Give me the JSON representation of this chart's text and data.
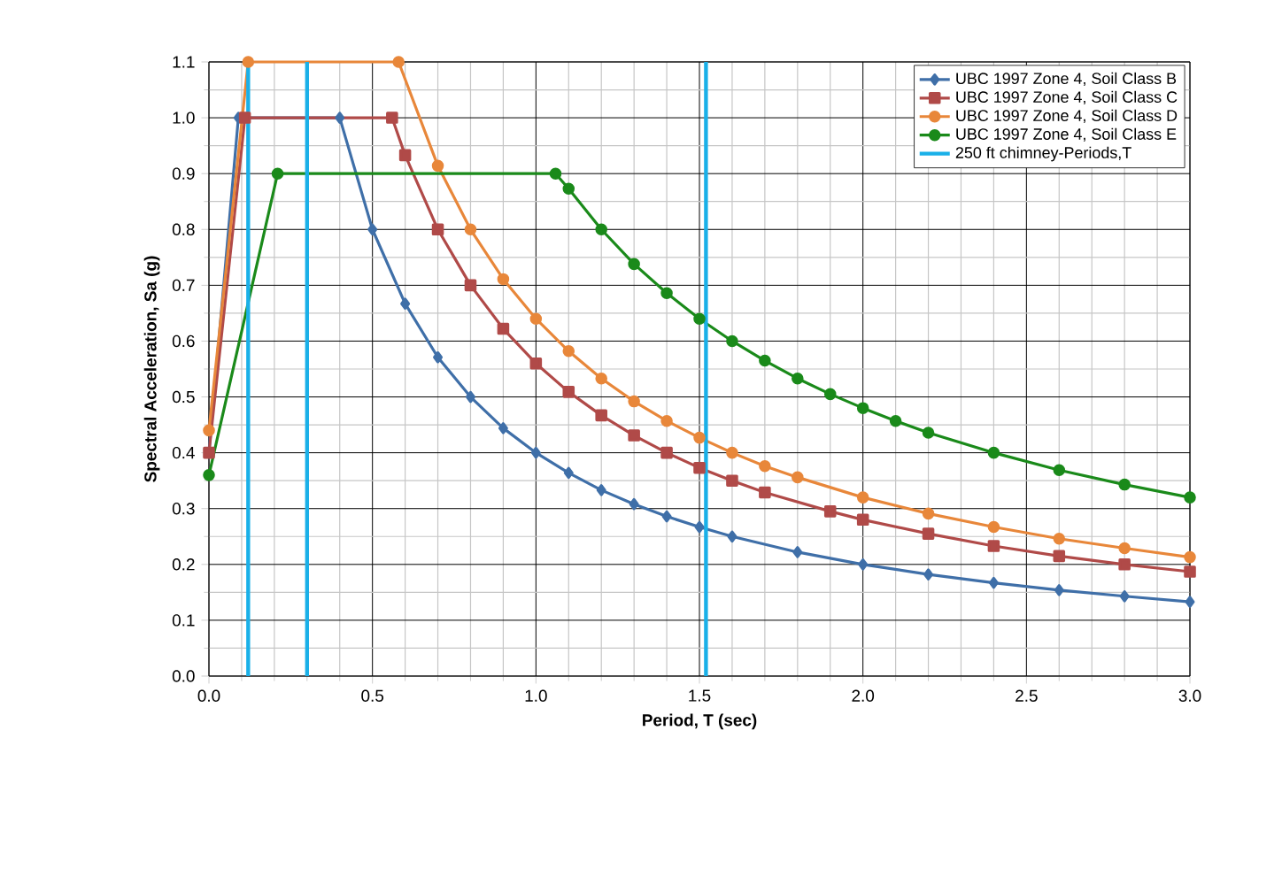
{
  "chart_data": {
    "type": "line",
    "xlabel": "Period, T (sec)",
    "ylabel": "Spectral Acceleration, Sa (g)",
    "xlim": [
      0,
      3
    ],
    "ylim": [
      0,
      1.1
    ],
    "xticks": [
      {
        "value": 0,
        "label": "0.0"
      },
      {
        "value": 0.5,
        "label": "0.5"
      },
      {
        "value": 1,
        "label": "1.0"
      },
      {
        "value": 1.5,
        "label": "1.5"
      },
      {
        "value": 2,
        "label": "2.0"
      },
      {
        "value": 2.5,
        "label": "2.5"
      },
      {
        "value": 3,
        "label": "3.0"
      }
    ],
    "yticks": [
      {
        "value": 0,
        "label": "0.0"
      },
      0.1,
      0.2,
      0.3,
      0.4,
      0.5,
      0.6,
      0.7,
      0.8,
      0.9,
      {
        "value": 1,
        "label": "1.0"
      },
      1.1
    ],
    "grid": true,
    "legend": "top right",
    "series": [
      {
        "name": "UBC 1997 Zone 4, Soil Class B",
        "color": "#3f6fa8",
        "marker": "diamond",
        "x": [
          0,
          0.09,
          0.4,
          0.5,
          0.6,
          0.7,
          0.8,
          0.9,
          1.0,
          1.1,
          1.2,
          1.3,
          1.4,
          1.5,
          1.6,
          1.8,
          2.0,
          2.2,
          2.4,
          2.6,
          2.8,
          3.0
        ],
        "values": [
          0.4,
          1.0,
          1.0,
          0.8,
          0.667,
          0.571,
          0.5,
          0.444,
          0.4,
          0.364,
          0.333,
          0.308,
          0.286,
          0.267,
          0.25,
          0.222,
          0.2,
          0.182,
          0.167,
          0.154,
          0.143,
          0.133
        ]
      },
      {
        "name": "UBC 1997 Zone 4, Soil Class C",
        "color": "#b04a48",
        "marker": "square",
        "x": [
          0,
          0.11,
          0.56,
          0.6,
          0.7,
          0.8,
          0.9,
          1.0,
          1.1,
          1.2,
          1.3,
          1.4,
          1.5,
          1.6,
          1.7,
          1.9,
          2.0,
          2.2,
          2.4,
          2.6,
          2.8,
          3.0
        ],
        "values": [
          0.4,
          1.0,
          1.0,
          0.933,
          0.8,
          0.7,
          0.622,
          0.56,
          0.509,
          0.467,
          0.431,
          0.4,
          0.373,
          0.35,
          0.329,
          0.295,
          0.28,
          0.255,
          0.233,
          0.215,
          0.2,
          0.187
        ]
      },
      {
        "name": "UBC 1997 Zone 4, Soil Class D",
        "color": "#e8873a",
        "marker": "circle",
        "x": [
          0,
          0.12,
          0.58,
          0.7,
          0.8,
          0.9,
          1.0,
          1.1,
          1.2,
          1.3,
          1.4,
          1.5,
          1.6,
          1.7,
          1.8,
          2.0,
          2.2,
          2.4,
          2.6,
          2.8,
          3.0
        ],
        "values": [
          0.44,
          1.1,
          1.1,
          0.914,
          0.8,
          0.711,
          0.64,
          0.582,
          0.533,
          0.492,
          0.457,
          0.427,
          0.4,
          0.376,
          0.356,
          0.32,
          0.291,
          0.267,
          0.246,
          0.229,
          0.213
        ]
      },
      {
        "name": "UBC 1997 Zone 4, Soil Class E",
        "color": "#1a8a1a",
        "marker": "circle",
        "x": [
          0,
          0.21,
          1.06,
          1.1,
          1.2,
          1.3,
          1.4,
          1.5,
          1.6,
          1.7,
          1.8,
          1.9,
          2.0,
          2.1,
          2.2,
          2.4,
          2.6,
          2.8,
          3.0
        ],
        "values": [
          0.36,
          0.9,
          0.9,
          0.873,
          0.8,
          0.738,
          0.686,
          0.64,
          0.6,
          0.565,
          0.533,
          0.505,
          0.48,
          0.457,
          0.436,
          0.4,
          0.369,
          0.343,
          0.32
        ]
      },
      {
        "name": "250 ft chimney-Periods,T",
        "color": "#1ab0e8",
        "marker": "none",
        "x": [
          0.12,
          0.12
        ],
        "values": [
          0,
          1.1
        ]
      },
      {
        "color": "#1ab0e8",
        "marker": "none",
        "x": [
          0.3,
          0.3
        ],
        "values": [
          0,
          1.1
        ]
      },
      {
        "color": "#1ab0e8",
        "marker": "none",
        "x": [
          1.52,
          1.52
        ],
        "values": [
          0,
          1.1
        ]
      }
    ]
  }
}
